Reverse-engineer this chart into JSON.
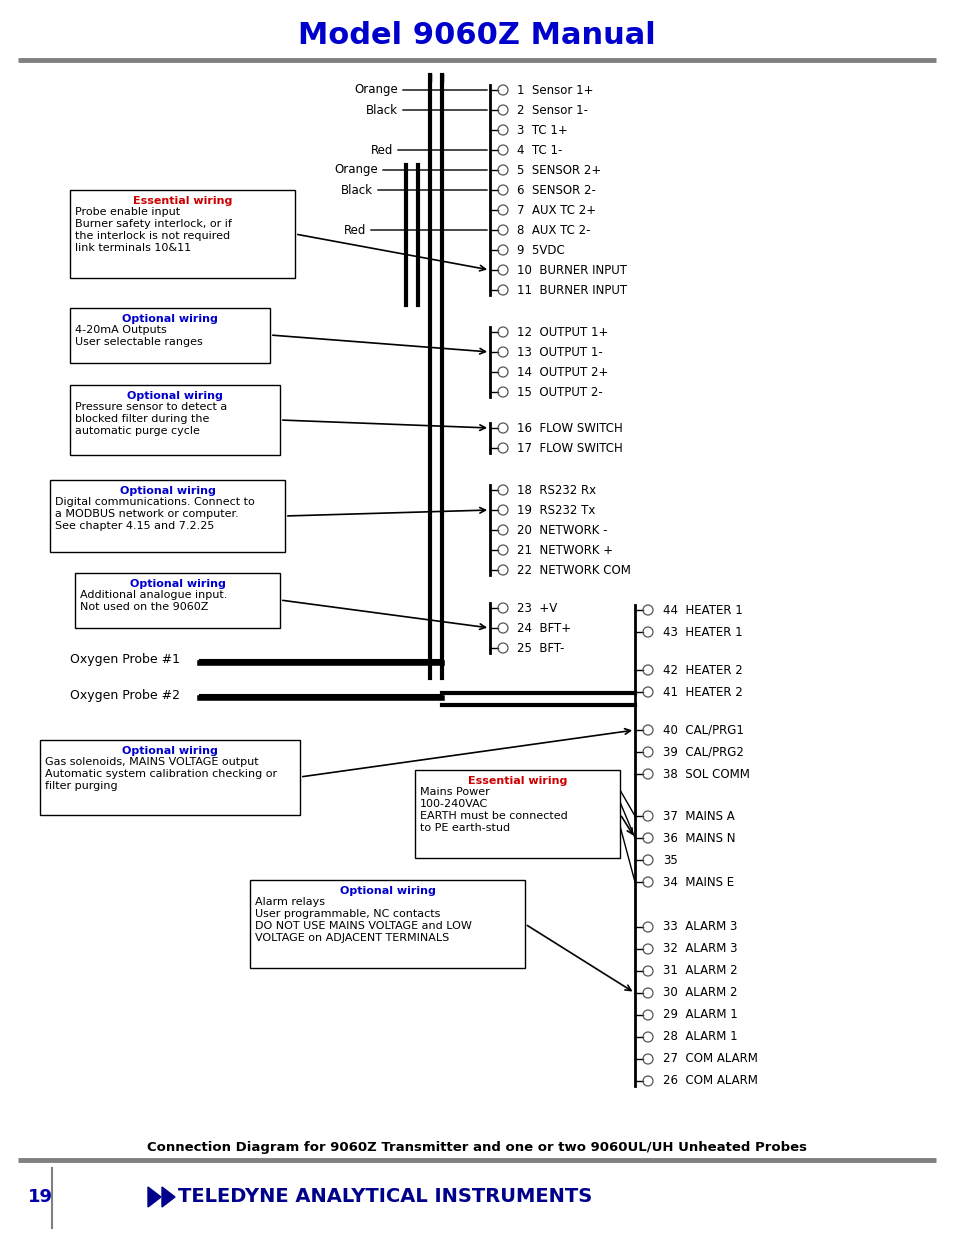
{
  "title": "Model 9060Z Manual",
  "title_color": "#0000CC",
  "page_number": "19",
  "footer_text": "TELEDYNE ANALYTICAL INSTRUMENTS",
  "bg_color": "#ffffff",
  "caption": "Connection Diagram for 9060Z Transmitter and one or two 9060UL/UH Unheated Probes",
  "left_terminals": {
    "1": {
      "label": "1  Sensor 1+"
    },
    "2": {
      "label": "2  Sensor 1-"
    },
    "3": {
      "label": "3  TC 1+"
    },
    "4": {
      "label": "4  TC 1-"
    },
    "5": {
      "label": "5  SENSOR 2+"
    },
    "6": {
      "label": "6  SENSOR 2-"
    },
    "7": {
      "label": "7  AUX TC 2+"
    },
    "8": {
      "label": "8  AUX TC 2-"
    },
    "9": {
      "label": "9  5VDC"
    },
    "10": {
      "label": "10  BURNER INPUT"
    },
    "11": {
      "label": "11  BURNER INPUT"
    },
    "12": {
      "label": "12  OUTPUT 1+"
    },
    "13": {
      "label": "13  OUTPUT 1-"
    },
    "14": {
      "label": "14  OUTPUT 2+"
    },
    "15": {
      "label": "15  OUTPUT 2-"
    },
    "16": {
      "label": "16  FLOW SWITCH"
    },
    "17": {
      "label": "17  FLOW SWITCH"
    },
    "18": {
      "label": "18  RS232 Rx"
    },
    "19": {
      "label": "19  RS232 Tx"
    },
    "20": {
      "label": "20  NETWORK -"
    },
    "21": {
      "label": "21  NETWORK +"
    },
    "22": {
      "label": "22  NETWORK COM"
    },
    "23": {
      "label": "23  +V"
    },
    "24": {
      "label": "24  BFT+"
    },
    "25": {
      "label": "25  BFT-"
    }
  },
  "right_terminals": {
    "44": {
      "label": "44  HEATER 1"
    },
    "43": {
      "label": "43  HEATER 1"
    },
    "42": {
      "label": "42  HEATER 2"
    },
    "41": {
      "label": "41  HEATER 2"
    },
    "40": {
      "label": "40  CAL/PRG1"
    },
    "39": {
      "label": "39  CAL/PRG2"
    },
    "38": {
      "label": "38  SOL COMM"
    },
    "37": {
      "label": "37  MAINS A"
    },
    "36": {
      "label": "36  MAINS N"
    },
    "35": {
      "label": "35"
    },
    "34": {
      "label": "34  MAINS E"
    },
    "33": {
      "label": "33  ALARM 3"
    },
    "32": {
      "label": "32  ALARM 3"
    },
    "31": {
      "label": "31  ALARM 2"
    },
    "30": {
      "label": "30  ALARM 2"
    },
    "29": {
      "label": "29  ALARM 1"
    },
    "28": {
      "label": "28  ALARM 1"
    },
    "27": {
      "label": "27  COM ALARM"
    },
    "26": {
      "label": "26  COM ALARM"
    }
  }
}
